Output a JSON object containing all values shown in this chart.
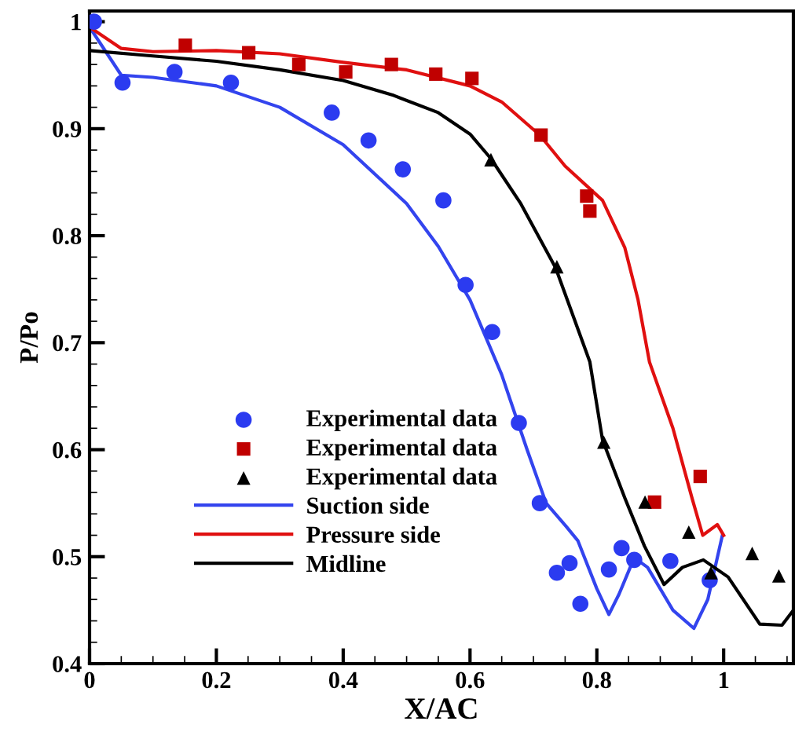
{
  "chart_data": {
    "type": "line",
    "xlabel": "X/AC",
    "ylabel": "P/Po",
    "xlim": [
      0,
      1.11
    ],
    "ylim": [
      0.4,
      1.01
    ],
    "xticks": [
      0,
      0.2,
      0.4,
      0.6,
      0.8,
      1
    ],
    "yticks": [
      0.4,
      0.5,
      0.6,
      0.7,
      0.8,
      0.9,
      1
    ],
    "grid": false,
    "legend": "bottom left",
    "series": [
      {
        "name": "Experimental data",
        "type": "scatter",
        "marker": "circle",
        "color": "#2b3bf0",
        "x": [
          0.007,
          0.052,
          0.134,
          0.223,
          0.382,
          0.44,
          0.494,
          0.558,
          0.593,
          0.635,
          0.677,
          0.71,
          0.737,
          0.757,
          0.774,
          0.819,
          0.839,
          0.859,
          0.916,
          0.978
        ],
        "values": [
          1.0,
          0.943,
          0.953,
          0.943,
          0.915,
          0.889,
          0.862,
          0.833,
          0.754,
          0.71,
          0.625,
          0.55,
          0.485,
          0.494,
          0.456,
          0.488,
          0.508,
          0.497,
          0.496,
          0.478
        ]
      },
      {
        "name": "Experimental data",
        "type": "scatter",
        "marker": "square",
        "color": "#c00000",
        "x": [
          0.151,
          0.251,
          0.33,
          0.404,
          0.476,
          0.546,
          0.603,
          0.712,
          0.784,
          0.789,
          0.891,
          0.963
        ],
        "values": [
          0.978,
          0.971,
          0.96,
          0.953,
          0.96,
          0.951,
          0.947,
          0.894,
          0.837,
          0.823,
          0.551,
          0.575
        ]
      },
      {
        "name": "Experimental data",
        "type": "scatter",
        "marker": "triangle",
        "color": "#000000",
        "x": [
          0.633,
          0.737,
          0.811,
          0.876,
          0.945,
          0.98,
          1.045,
          1.087
        ],
        "values": [
          0.871,
          0.771,
          0.607,
          0.551,
          0.523,
          0.485,
          0.503,
          0.482
        ]
      },
      {
        "name": "Suction side",
        "color": "#3344ee",
        "x": [
          0,
          0.05,
          0.1,
          0.2,
          0.3,
          0.4,
          0.5,
          0.55,
          0.6,
          0.65,
          0.69,
          0.72,
          0.752,
          0.77,
          0.8,
          0.819,
          0.835,
          0.859,
          0.88,
          0.92,
          0.953,
          0.975,
          0.998
        ],
        "values": [
          0.995,
          0.95,
          0.948,
          0.94,
          0.92,
          0.885,
          0.83,
          0.79,
          0.74,
          0.67,
          0.6,
          0.55,
          0.528,
          0.515,
          0.47,
          0.446,
          0.465,
          0.499,
          0.49,
          0.45,
          0.433,
          0.46,
          0.52
        ]
      },
      {
        "name": "Pressure side",
        "color": "#e01010",
        "x": [
          0,
          0.05,
          0.1,
          0.2,
          0.3,
          0.4,
          0.5,
          0.6,
          0.65,
          0.71,
          0.75,
          0.809,
          0.844,
          0.865,
          0.883,
          0.92,
          0.95,
          0.967,
          0.99,
          1.0
        ],
        "values": [
          0.995,
          0.975,
          0.972,
          0.973,
          0.97,
          0.962,
          0.955,
          0.94,
          0.925,
          0.894,
          0.865,
          0.833,
          0.789,
          0.74,
          0.682,
          0.62,
          0.555,
          0.52,
          0.53,
          0.52
        ]
      },
      {
        "name": "Midline",
        "color": "#000000",
        "x": [
          0,
          0.1,
          0.2,
          0.3,
          0.4,
          0.48,
          0.55,
          0.6,
          0.633,
          0.68,
          0.735,
          0.789,
          0.809,
          0.844,
          0.875,
          0.906,
          0.935,
          0.968,
          1.007,
          1.057,
          1.092,
          1.11
        ],
        "values": [
          0.973,
          0.968,
          0.963,
          0.955,
          0.945,
          0.931,
          0.915,
          0.895,
          0.872,
          0.83,
          0.77,
          0.682,
          0.609,
          0.555,
          0.51,
          0.474,
          0.49,
          0.497,
          0.481,
          0.437,
          0.436,
          0.45
        ]
      }
    ]
  }
}
